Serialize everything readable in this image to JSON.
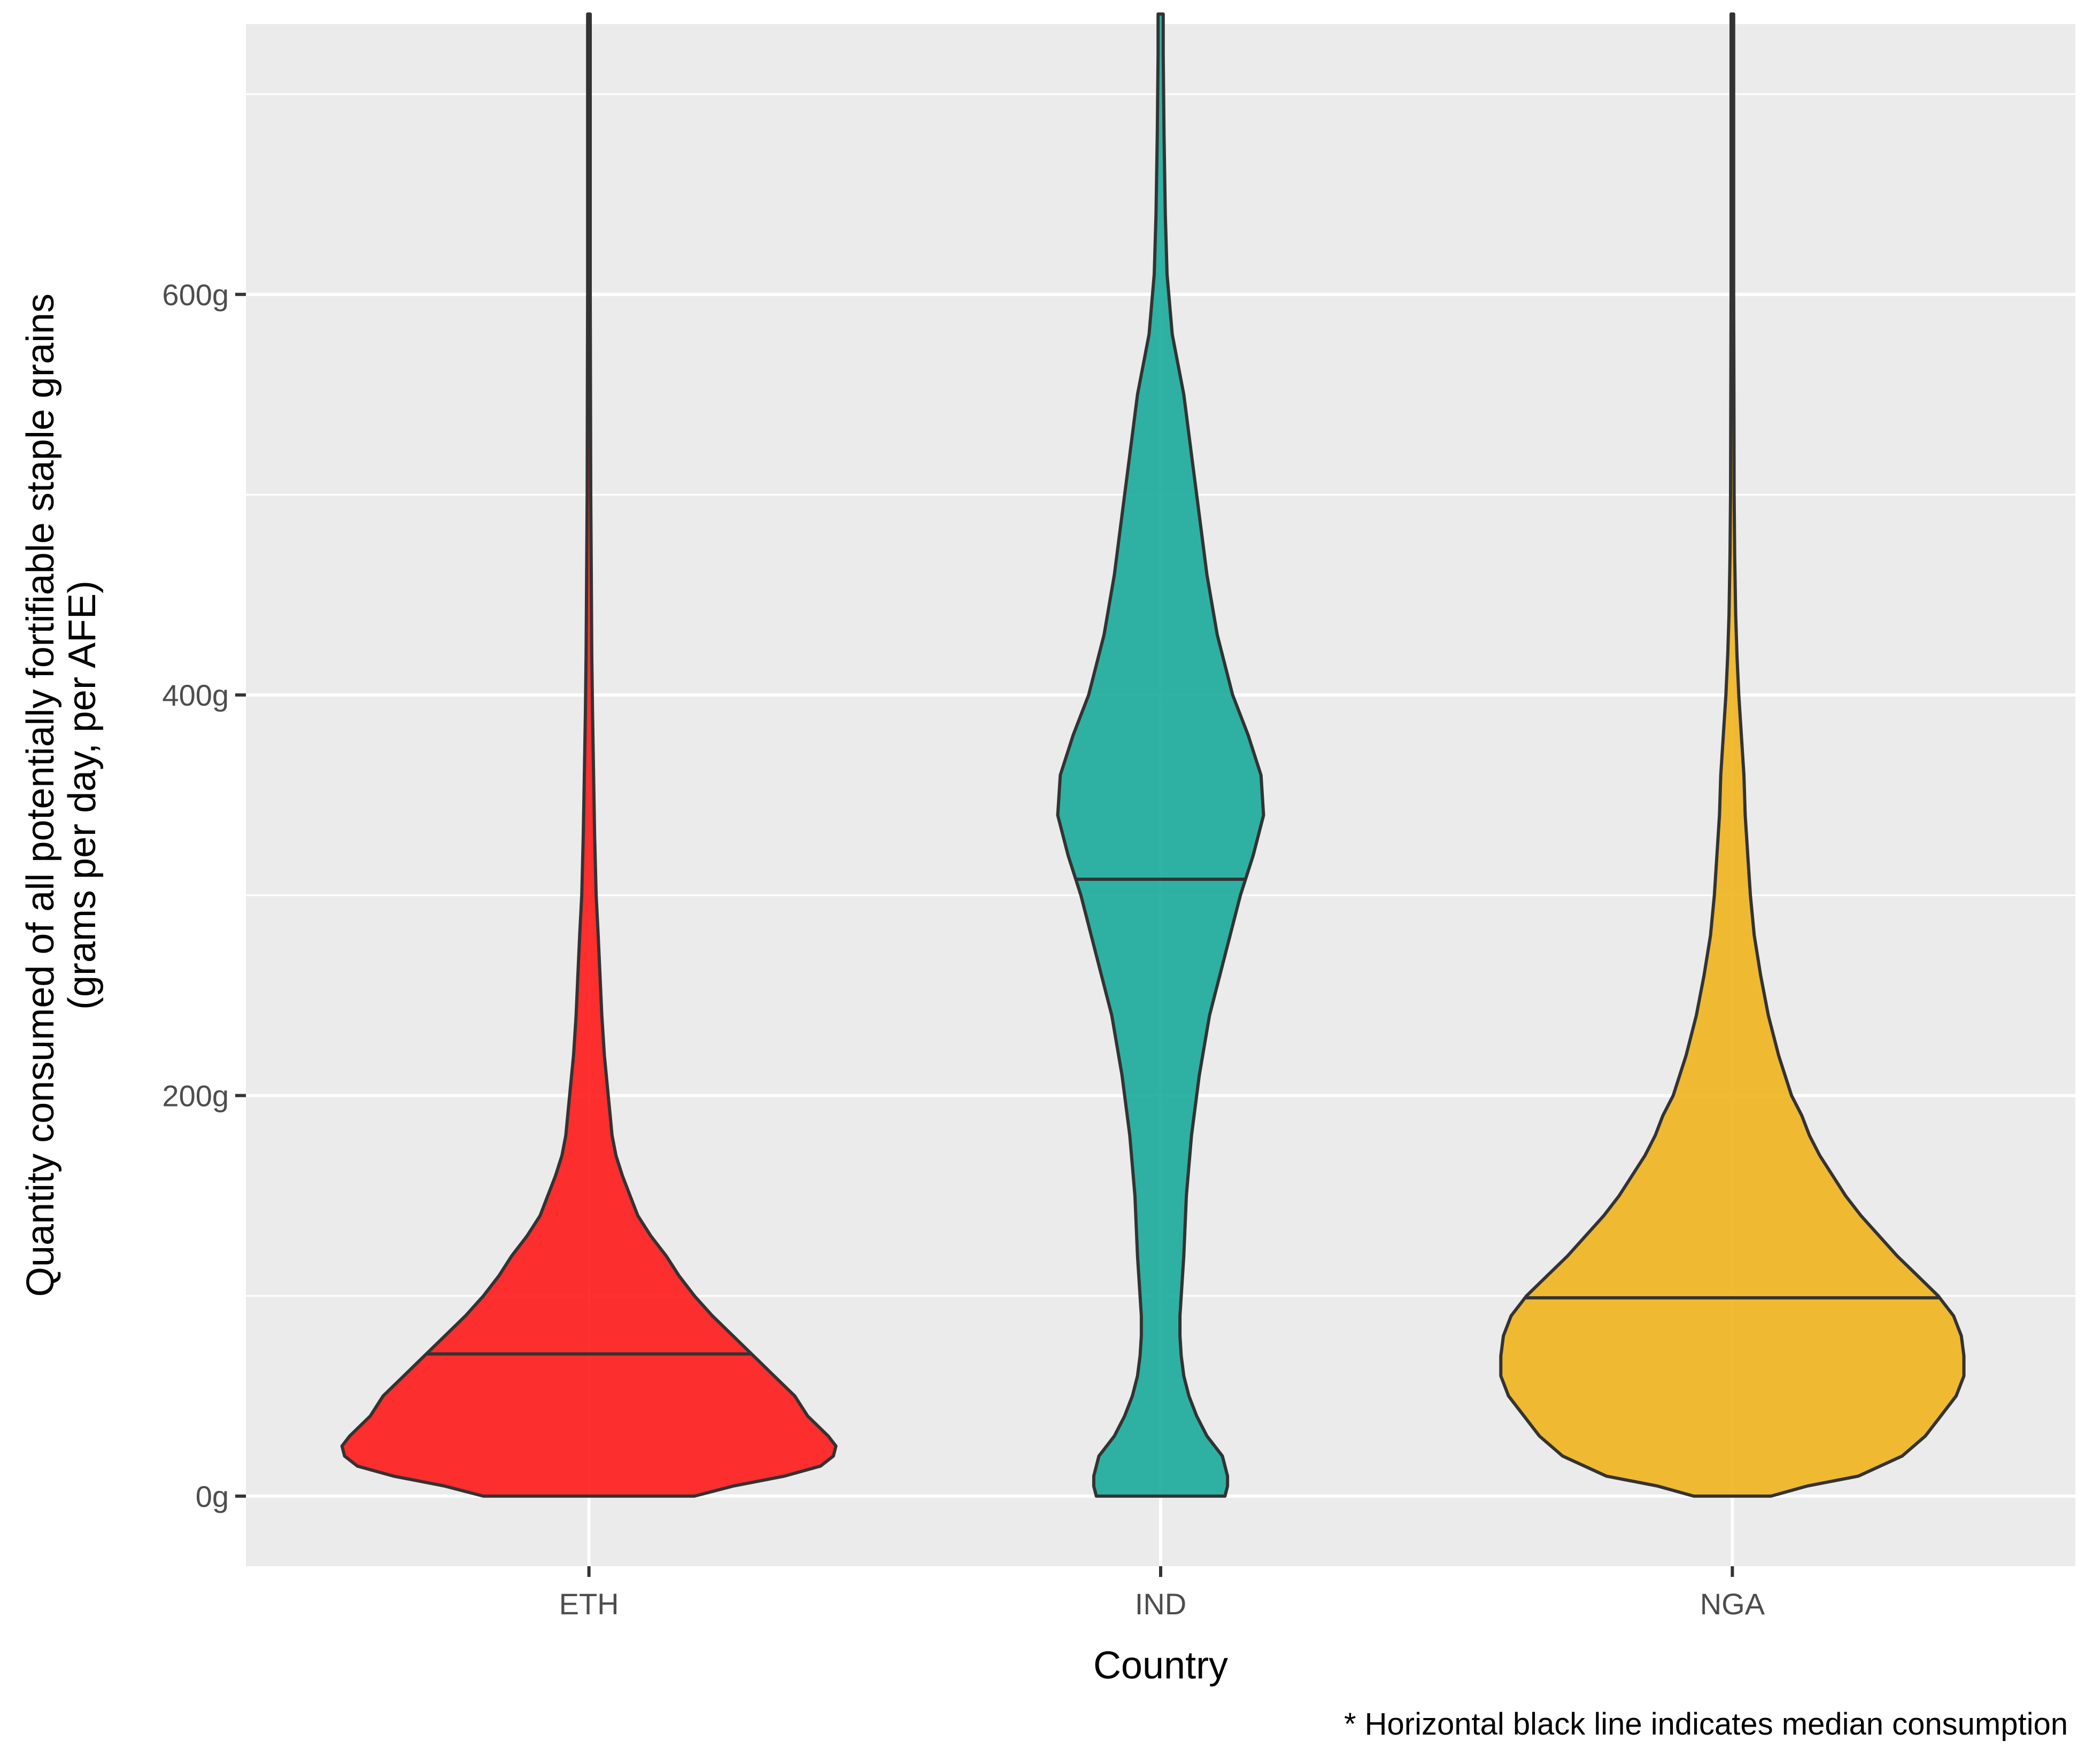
{
  "chart_data": {
    "type": "violin",
    "xlabel": "Country",
    "ylabel_lines": [
      "Quantity consumed of all potentially fortifiable staple grains",
      "(grams per day, per AFE)"
    ],
    "caption": "* Horizontal black line indicates median consumption",
    "categories": [
      "ETH",
      "IND",
      "NGA"
    ],
    "ylim": [
      -35,
      735
    ],
    "y_ticks": [
      0,
      200,
      400,
      600
    ],
    "y_tick_labels": [
      "0g",
      "200g",
      "400g",
      "600g"
    ],
    "y_minor_ticks": [
      100,
      300,
      500,
      700
    ],
    "grid": true,
    "legend": "none",
    "colors": {
      "panel_bg": "#ebebeb",
      "grid": "#ffffff",
      "outline": "#333333",
      "ETH": "#ff1a1a",
      "IND": "#1aab9a",
      "NGA": "#f0b41e"
    },
    "series": [
      {
        "category": "ETH",
        "median": 71,
        "y_range": [
          0,
          740
        ],
        "density_profile": [
          [
            0,
            0.41
          ],
          [
            5,
            0.56
          ],
          [
            10,
            0.76
          ],
          [
            15,
            0.9
          ],
          [
            20,
            0.95
          ],
          [
            25,
            0.96
          ],
          [
            30,
            0.93
          ],
          [
            40,
            0.85
          ],
          [
            50,
            0.8
          ],
          [
            60,
            0.72
          ],
          [
            70,
            0.64
          ],
          [
            80,
            0.56
          ],
          [
            90,
            0.48
          ],
          [
            100,
            0.41
          ],
          [
            110,
            0.35
          ],
          [
            120,
            0.3
          ],
          [
            130,
            0.24
          ],
          [
            140,
            0.19
          ],
          [
            150,
            0.16
          ],
          [
            160,
            0.13
          ],
          [
            170,
            0.105
          ],
          [
            180,
            0.09
          ],
          [
            200,
            0.075
          ],
          [
            220,
            0.06
          ],
          [
            240,
            0.05
          ],
          [
            260,
            0.043
          ],
          [
            280,
            0.036
          ],
          [
            300,
            0.028
          ],
          [
            330,
            0.022
          ],
          [
            360,
            0.018
          ],
          [
            390,
            0.014
          ],
          [
            420,
            0.011
          ],
          [
            460,
            0.009
          ],
          [
            500,
            0.007
          ],
          [
            550,
            0.006
          ],
          [
            600,
            0.005
          ],
          [
            650,
            0.005
          ],
          [
            700,
            0.005
          ],
          [
            740,
            0.005
          ]
        ]
      },
      {
        "category": "IND",
        "median": 308,
        "y_range": [
          0,
          740
        ],
        "density_profile": [
          [
            0,
            0.25
          ],
          [
            5,
            0.26
          ],
          [
            10,
            0.26
          ],
          [
            20,
            0.24
          ],
          [
            30,
            0.18
          ],
          [
            40,
            0.14
          ],
          [
            50,
            0.11
          ],
          [
            60,
            0.09
          ],
          [
            70,
            0.08
          ],
          [
            80,
            0.075
          ],
          [
            90,
            0.075
          ],
          [
            100,
            0.08
          ],
          [
            120,
            0.09
          ],
          [
            150,
            0.1
          ],
          [
            180,
            0.12
          ],
          [
            210,
            0.15
          ],
          [
            240,
            0.19
          ],
          [
            270,
            0.25
          ],
          [
            300,
            0.31
          ],
          [
            320,
            0.36
          ],
          [
            340,
            0.4
          ],
          [
            360,
            0.39
          ],
          [
            380,
            0.34
          ],
          [
            400,
            0.28
          ],
          [
            430,
            0.22
          ],
          [
            460,
            0.18
          ],
          [
            490,
            0.15
          ],
          [
            520,
            0.12
          ],
          [
            550,
            0.09
          ],
          [
            580,
            0.045
          ],
          [
            610,
            0.025
          ],
          [
            640,
            0.018
          ],
          [
            680,
            0.013
          ],
          [
            720,
            0.01
          ],
          [
            740,
            0.01
          ]
        ]
      },
      {
        "category": "NGA",
        "median": 99,
        "y_range": [
          0,
          740
        ],
        "density_profile": [
          [
            0,
            0.15
          ],
          [
            5,
            0.29
          ],
          [
            10,
            0.49
          ],
          [
            20,
            0.66
          ],
          [
            30,
            0.75
          ],
          [
            40,
            0.81
          ],
          [
            50,
            0.87
          ],
          [
            60,
            0.9
          ],
          [
            70,
            0.9
          ],
          [
            80,
            0.89
          ],
          [
            90,
            0.86
          ],
          [
            100,
            0.8
          ],
          [
            110,
            0.72
          ],
          [
            120,
            0.64
          ],
          [
            130,
            0.57
          ],
          [
            140,
            0.5
          ],
          [
            150,
            0.44
          ],
          [
            160,
            0.39
          ],
          [
            170,
            0.34
          ],
          [
            180,
            0.3
          ],
          [
            190,
            0.27
          ],
          [
            200,
            0.23
          ],
          [
            220,
            0.18
          ],
          [
            240,
            0.14
          ],
          [
            260,
            0.11
          ],
          [
            280,
            0.085
          ],
          [
            300,
            0.07
          ],
          [
            320,
            0.06
          ],
          [
            340,
            0.05
          ],
          [
            360,
            0.045
          ],
          [
            380,
            0.035
          ],
          [
            400,
            0.025
          ],
          [
            420,
            0.018
          ],
          [
            440,
            0.013
          ],
          [
            470,
            0.009
          ],
          [
            500,
            0.007
          ],
          [
            550,
            0.006
          ],
          [
            600,
            0.005
          ],
          [
            650,
            0.005
          ],
          [
            700,
            0.005
          ],
          [
            740,
            0.005
          ]
        ]
      }
    ]
  }
}
